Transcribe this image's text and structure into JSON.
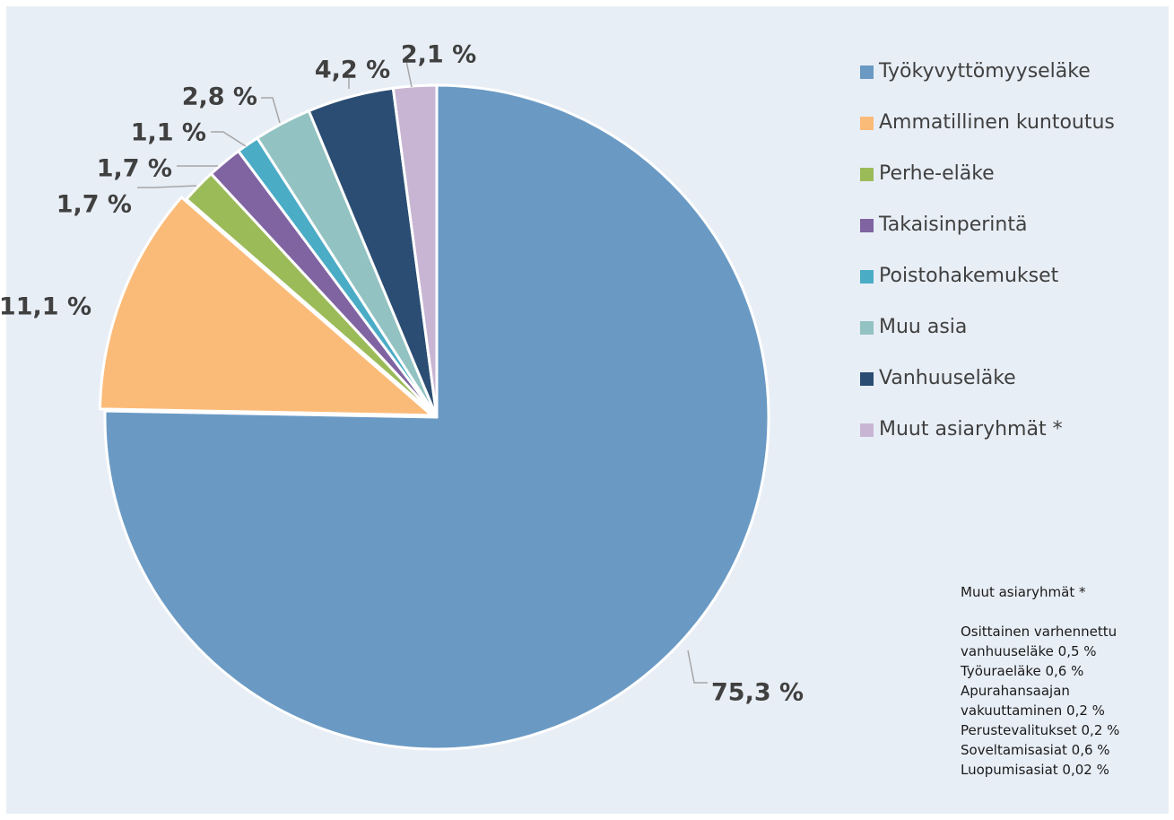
{
  "chart_data": {
    "type": "pie",
    "title": "",
    "slices": [
      {
        "name": "Työkyvyttömyyseläke",
        "value": 75.3,
        "label": "75,3 %",
        "color": "#6a9ac4"
      },
      {
        "name": "Ammatillinen kuntoutus",
        "value": 11.1,
        "label": "11,1 %",
        "color": "#fbbb78"
      },
      {
        "name": "Perhe-eläke",
        "value": 1.7,
        "label": "1,7 %",
        "color": "#9bbb59"
      },
      {
        "name": "Takaisinperintä",
        "value": 1.7,
        "label": "1,7 %",
        "color": "#8064a2"
      },
      {
        "name": "Poistohakemukset",
        "value": 1.1,
        "label": "1,1 %",
        "color": "#4bacc6"
      },
      {
        "name": "Muu asia",
        "value": 2.8,
        "label": "2,8 %",
        "color": "#93c2c2"
      },
      {
        "name": "Vanhuuseläke",
        "value": 4.2,
        "label": "4,2 %",
        "color": "#2b4d73"
      },
      {
        "name": "Muut asiaryhmät *",
        "value": 2.1,
        "label": "2,1 %",
        "color": "#c8b5d3"
      }
    ],
    "legend_position": "right"
  },
  "note": {
    "title": "Muut asiaryhmät *",
    "lines": [
      "Osittainen varhennettu",
      "vanhuuseläke 0,5 %",
      "Työuraeläke 0,6 %",
      "Apurahansaajan",
      "vakuuttaminen 0,2 %",
      "Perustevalitukset 0,2 %",
      "Soveltamisasiat 0,6 %",
      "Luopumisasiat 0,02 %"
    ]
  }
}
